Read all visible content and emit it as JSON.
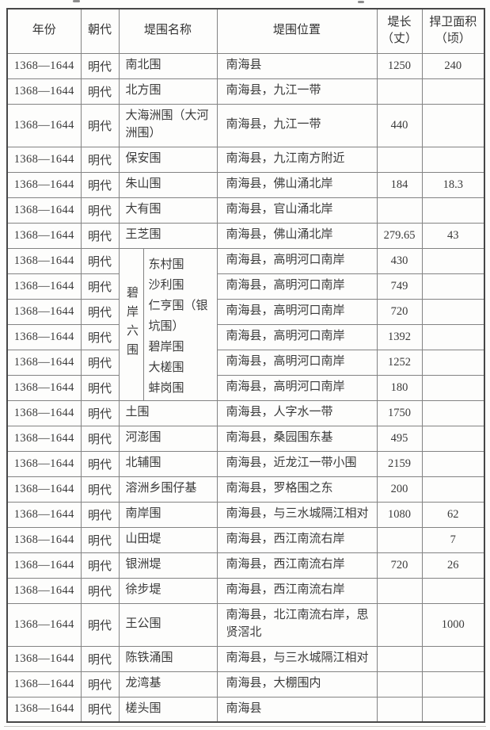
{
  "page": {
    "background": "#fdfdfc",
    "text_color": "#3a3a3a",
    "outer_border_color": "#474747",
    "inner_border_color": "#838383"
  },
  "header": {
    "year": "年份",
    "dynasty": "朝代",
    "name": "堤围名称",
    "location": "堤围位置",
    "length_line1": "堤长",
    "length_line2": "（丈）",
    "area_line1": "捍卫面积",
    "area_line2": "（顷）"
  },
  "group": {
    "label": "碧岸六围",
    "names": [
      "东村围",
      "沙利围",
      "仁亨围（银坑围）",
      "碧岸围",
      "大槎围",
      "蚌岗围"
    ]
  },
  "rows": [
    {
      "year": "1368—1644",
      "dynasty": "明代",
      "name": "南北围",
      "location": "南海县",
      "length": "1250",
      "area": "240"
    },
    {
      "year": "1368—1644",
      "dynasty": "明代",
      "name": "北方围",
      "location": "南海县，九江一带",
      "length": "",
      "area": ""
    },
    {
      "year": "1368—1644",
      "dynasty": "明代",
      "name": "大海洲围（大河洲围）",
      "location": "南海县，九江一带",
      "length": "440",
      "area": "",
      "tall": true
    },
    {
      "year": "1368—1644",
      "dynasty": "明代",
      "name": "保安围",
      "location": "南海县，九江南方附近",
      "length": "",
      "area": ""
    },
    {
      "year": "1368—1644",
      "dynasty": "明代",
      "name": "朱山围",
      "location": "南海县，佛山涌北岸",
      "length": "184",
      "area": "18.3"
    },
    {
      "year": "1368—1644",
      "dynasty": "明代",
      "name": "大有围",
      "location": "南海县，官山涌北岸",
      "length": "",
      "area": ""
    },
    {
      "year": "1368—1644",
      "dynasty": "明代",
      "name": "王芝围",
      "location": "南海县，佛山涌北岸",
      "length": "279.65",
      "area": "43"
    },
    {
      "year": "1368—1644",
      "dynasty": "明代",
      "group_start": true,
      "location": "南海县，高明河口南岸",
      "length": "430",
      "area": ""
    },
    {
      "year": "1368—1644",
      "dynasty": "明代",
      "in_group": true,
      "location": "南海县，高明河口南岸",
      "length": "749",
      "area": ""
    },
    {
      "year": "1368—1644",
      "dynasty": "明代",
      "in_group": true,
      "location": "南海县，高明河口南岸",
      "length": "720",
      "area": ""
    },
    {
      "year": "1368—1644",
      "dynasty": "明代",
      "in_group": true,
      "location": "南海县，高明河口南岸",
      "length": "1392",
      "area": ""
    },
    {
      "year": "1368—1644",
      "dynasty": "明代",
      "in_group": true,
      "location": "南海县，高明河口南岸",
      "length": "1252",
      "area": ""
    },
    {
      "year": "1368—1644",
      "dynasty": "明代",
      "in_group": true,
      "location": "南海县，高明河口南岸",
      "length": "180",
      "area": ""
    },
    {
      "year": "1368—1644",
      "dynasty": "明代",
      "name": "土围",
      "location": "南海县，人字水一带",
      "length": "1750",
      "area": ""
    },
    {
      "year": "1368—1644",
      "dynasty": "明代",
      "name": "河澎围",
      "location": "南海县，桑园围东基",
      "length": "495",
      "area": ""
    },
    {
      "year": "1368—1644",
      "dynasty": "明代",
      "name": "北辅围",
      "location": "南海县，近龙江一带小围",
      "length": "2159",
      "area": ""
    },
    {
      "year": "1368—1644",
      "dynasty": "明代",
      "name": "溶洲乡围仔基",
      "location": "南海县，罗格围之东",
      "length": "200",
      "area": ""
    },
    {
      "year": "1368—1644",
      "dynasty": "明代",
      "name": "南岸围",
      "location": "南海县，与三水城隔江相对",
      "length": "1080",
      "area": "62"
    },
    {
      "year": "1368—1644",
      "dynasty": "明代",
      "name": "山田堤",
      "location": "南海县，西江南流右岸",
      "length": "",
      "area": "7"
    },
    {
      "year": "1368—1644",
      "dynasty": "明代",
      "name": "银洲堤",
      "location": "南海县，西江南流右岸",
      "length": "720",
      "area": "26"
    },
    {
      "year": "1368—1644",
      "dynasty": "明代",
      "name": "徐步堤",
      "location": "南海县，西江南流右岸",
      "length": "",
      "area": ""
    },
    {
      "year": "1368—1644",
      "dynasty": "明代",
      "name": "王公围",
      "location": "南海县，北江南流右岸，思贤滘北",
      "length": "",
      "area": "1000",
      "tall": true
    },
    {
      "year": "1368—1644",
      "dynasty": "明代",
      "name": "陈铁涌围",
      "location": "南海县，与三水城隔江相对",
      "length": "",
      "area": ""
    },
    {
      "year": "1368—1644",
      "dynasty": "明代",
      "name": "龙湾基",
      "location": "南海县，大棚围内",
      "length": "",
      "area": ""
    },
    {
      "year": "1368—1644",
      "dynasty": "明代",
      "name": "槎头围",
      "location": "南海县",
      "length": "",
      "area": ""
    }
  ]
}
